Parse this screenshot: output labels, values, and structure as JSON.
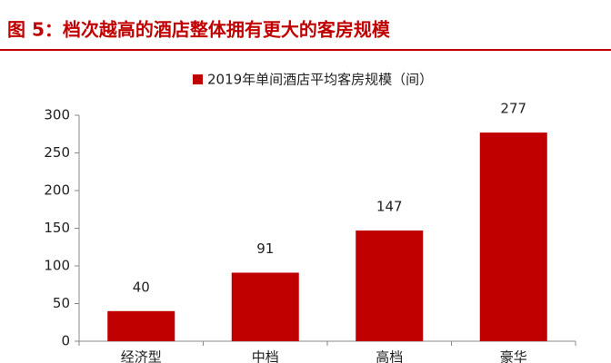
{
  "chart_data": {
    "type": "bar",
    "title": "图 5：档次越高的酒店整体拥有更大的客房规模",
    "categories": [
      "经济型",
      "中档",
      "高档",
      "豪华"
    ],
    "series": [
      {
        "name": "2019年单间酒店平均客房规模（间）",
        "color": "#c00000",
        "values": [
          40,
          91,
          147,
          277
        ]
      }
    ],
    "ylim": [
      0,
      300
    ],
    "yticks": [
      0,
      50,
      100,
      150,
      200,
      250,
      300
    ],
    "legend": "top"
  }
}
